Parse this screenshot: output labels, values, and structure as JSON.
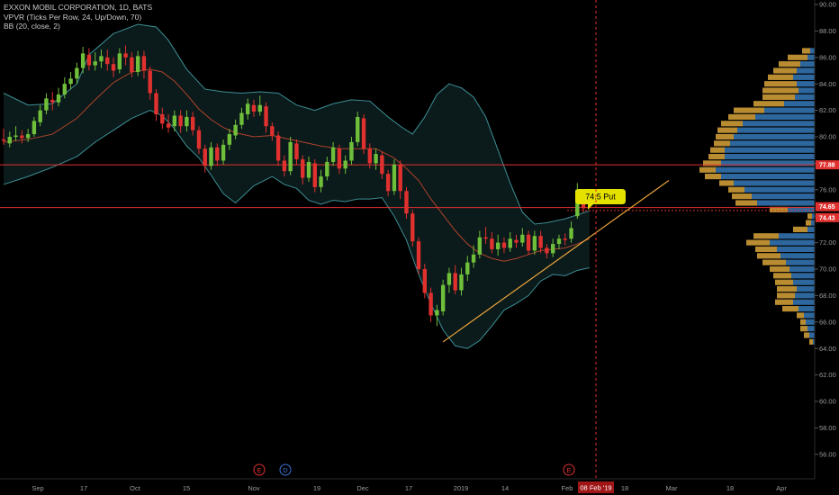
{
  "legend": {
    "symbol": "EXXON MOBIL CORPORATION, 1D, BATS",
    "vpvr": "VPVR (Ticks Per Row, 24, Up/Down, 70)",
    "bb": "BB (20, close, 2)"
  },
  "colors": {
    "background": "#000000",
    "candle_up": "#6fbf3b",
    "candle_down": "#e0312f",
    "bb_band": "#3d8f95",
    "bb_basis": "#b0442c",
    "bb_fill": "#0b1a1a",
    "vpvr_up": "#3579b8",
    "vpvr_down": "#d9a43a",
    "hline": "#e0312f",
    "trendline": "#e8a33a",
    "callout": "#e4e100"
  },
  "callout": {
    "text": "74.5 Put"
  },
  "crosshair": {
    "date_label": "08 Feb '19"
  },
  "events": [
    {
      "label": "E",
      "color": "#e0312f"
    },
    {
      "label": "D",
      "color": "#3b73d6"
    },
    {
      "label": "E",
      "color": "#e0312f"
    }
  ],
  "chart_data": {
    "type": "candlestick",
    "title": "EXXON MOBIL CORPORATION, 1D, BATS",
    "ylim": [
      55,
      90
    ],
    "y_ticks": [
      "56.00",
      "58.00",
      "60.00",
      "62.00",
      "64.00",
      "66.00",
      "68.00",
      "70.00",
      "72.00",
      "74.00",
      "76.00",
      "78.00",
      "80.00",
      "82.00",
      "84.00",
      "86.00",
      "88.00",
      "90.00"
    ],
    "x_labels": [
      "Sep",
      "17",
      "Oct",
      "15",
      "Nov",
      "19",
      "Dec",
      "17",
      "2019",
      "14",
      "Feb",
      "18",
      "Mar",
      "18",
      "Apr"
    ],
    "price_tags": [
      {
        "value": "77.88",
        "color": "#e0312f"
      },
      {
        "value": "74.65",
        "color": "#e0312f"
      },
      {
        "value": "74.43",
        "color": "#e0312f"
      }
    ],
    "hlines": [
      77.88,
      74.65
    ],
    "candles": [
      [
        79.8,
        79.7,
        80.6,
        79.4
      ],
      [
        79.5,
        80.0,
        80.4,
        79.2
      ],
      [
        80.0,
        80.1,
        80.8,
        79.7
      ],
      [
        80.1,
        79.9,
        80.5,
        79.5
      ],
      [
        79.9,
        80.2,
        80.6,
        79.6
      ],
      [
        80.2,
        81.2,
        81.5,
        80.0
      ],
      [
        81.1,
        82.0,
        82.4,
        80.8
      ],
      [
        82.0,
        82.9,
        83.3,
        81.7
      ],
      [
        82.8,
        82.6,
        83.4,
        82.0
      ],
      [
        82.6,
        83.2,
        83.7,
        82.3
      ],
      [
        83.2,
        84.0,
        84.5,
        82.9
      ],
      [
        84.0,
        84.4,
        84.9,
        83.6
      ],
      [
        84.4,
        85.2,
        85.6,
        84.0
      ],
      [
        85.2,
        86.3,
        86.8,
        84.8
      ],
      [
        86.2,
        85.4,
        86.7,
        85.0
      ],
      [
        85.4,
        85.7,
        86.4,
        85.0
      ],
      [
        85.7,
        86.1,
        86.6,
        85.2
      ],
      [
        86.0,
        85.5,
        86.6,
        85.0
      ],
      [
        85.5,
        85.0,
        86.0,
        84.5
      ],
      [
        85.1,
        86.3,
        86.7,
        84.8
      ],
      [
        86.3,
        86.0,
        86.9,
        85.4
      ],
      [
        86.0,
        84.9,
        86.4,
        84.5
      ],
      [
        84.9,
        86.1,
        86.5,
        84.6
      ],
      [
        86.1,
        85.0,
        86.5,
        84.4
      ],
      [
        85.0,
        83.3,
        85.3,
        82.8
      ],
      [
        83.3,
        81.7,
        83.6,
        81.2
      ],
      [
        81.7,
        81.0,
        82.2,
        80.6
      ],
      [
        81.0,
        80.7,
        81.7,
        80.3
      ],
      [
        80.8,
        81.6,
        82.0,
        80.4
      ],
      [
        81.6,
        80.8,
        82.0,
        80.3
      ],
      [
        80.8,
        81.5,
        82.0,
        80.4
      ],
      [
        81.5,
        80.5,
        81.9,
        80.1
      ],
      [
        80.5,
        79.1,
        80.8,
        78.7
      ],
      [
        79.1,
        77.8,
        79.4,
        77.3
      ],
      [
        77.8,
        79.2,
        79.6,
        77.5
      ],
      [
        79.2,
        78.2,
        79.5,
        77.8
      ],
      [
        78.2,
        79.4,
        79.8,
        77.9
      ],
      [
        79.4,
        80.2,
        80.6,
        79.0
      ],
      [
        80.1,
        80.9,
        81.3,
        79.8
      ],
      [
        80.9,
        81.8,
        82.2,
        80.6
      ],
      [
        81.7,
        82.5,
        82.9,
        81.3
      ],
      [
        82.4,
        81.9,
        82.8,
        81.5
      ],
      [
        81.9,
        82.4,
        83.1,
        81.6
      ],
      [
        82.3,
        80.8,
        82.6,
        80.3
      ],
      [
        80.8,
        80.1,
        81.1,
        79.7
      ],
      [
        80.1,
        78.2,
        80.4,
        77.8
      ],
      [
        78.2,
        77.4,
        78.6,
        77.0
      ],
      [
        77.4,
        79.6,
        80.0,
        77.1
      ],
      [
        79.5,
        78.3,
        79.8,
        77.9
      ],
      [
        78.3,
        76.9,
        78.6,
        76.4
      ],
      [
        76.9,
        78.1,
        78.5,
        76.6
      ],
      [
        78.0,
        76.2,
        78.3,
        75.8
      ],
      [
        76.2,
        77.0,
        77.5,
        75.8
      ],
      [
        77.0,
        78.1,
        78.5,
        76.7
      ],
      [
        78.1,
        79.2,
        79.6,
        77.8
      ],
      [
        79.1,
        77.6,
        79.4,
        77.2
      ],
      [
        77.6,
        78.2,
        78.6,
        77.2
      ],
      [
        78.2,
        79.6,
        80.0,
        77.9
      ],
      [
        79.6,
        81.5,
        81.9,
        79.3
      ],
      [
        81.4,
        79.1,
        81.7,
        78.7
      ],
      [
        79.1,
        78.0,
        79.5,
        77.6
      ],
      [
        78.0,
        78.7,
        79.1,
        77.5
      ],
      [
        78.6,
        77.2,
        78.9,
        76.8
      ],
      [
        77.2,
        75.9,
        77.5,
        75.5
      ],
      [
        75.9,
        77.9,
        78.3,
        75.6
      ],
      [
        77.9,
        75.9,
        78.2,
        75.3
      ],
      [
        75.9,
        74.2,
        76.2,
        73.8
      ],
      [
        74.2,
        72.1,
        74.5,
        71.7
      ],
      [
        72.1,
        70.0,
        72.4,
        69.6
      ],
      [
        70.0,
        68.2,
        70.4,
        67.8
      ],
      [
        68.2,
        66.5,
        68.6,
        66.0
      ],
      [
        66.5,
        66.9,
        67.3,
        65.7
      ],
      [
        66.8,
        68.8,
        69.2,
        66.5
      ],
      [
        68.8,
        69.7,
        70.1,
        68.2
      ],
      [
        69.7,
        68.4,
        70.3,
        68.1
      ],
      [
        68.4,
        69.6,
        70.1,
        68.0
      ],
      [
        69.6,
        70.5,
        71.0,
        69.1
      ],
      [
        70.5,
        71.1,
        71.8,
        70.1
      ],
      [
        71.1,
        72.4,
        72.9,
        70.8
      ],
      [
        72.4,
        72.3,
        73.2,
        71.9
      ],
      [
        72.3,
        71.5,
        72.8,
        71.2
      ],
      [
        71.5,
        72.0,
        72.6,
        71.0
      ],
      [
        72.0,
        71.6,
        72.4,
        71.2
      ],
      [
        71.6,
        72.3,
        72.8,
        71.3
      ],
      [
        72.2,
        72.0,
        72.6,
        71.6
      ],
      [
        72.0,
        72.6,
        73.1,
        71.7
      ],
      [
        72.6,
        71.4,
        72.9,
        71.1
      ],
      [
        71.4,
        72.5,
        72.9,
        71.1
      ],
      [
        72.5,
        71.6,
        72.9,
        71.2
      ],
      [
        71.6,
        71.2,
        71.9,
        70.8
      ],
      [
        71.2,
        71.9,
        72.3,
        70.9
      ],
      [
        71.9,
        72.3,
        72.6,
        71.5
      ],
      [
        72.3,
        72.2,
        72.7,
        71.8
      ],
      [
        72.3,
        73.1,
        73.6,
        72.0
      ],
      [
        74.0,
        76.0,
        76.5,
        73.8
      ],
      [
        75.7,
        74.6,
        76.0,
        74.3
      ]
    ],
    "bb_upper": [
      [
        0,
        83.3
      ],
      [
        4,
        82.4
      ],
      [
        8,
        82.5
      ],
      [
        12,
        84.0
      ],
      [
        14,
        86.2
      ],
      [
        18,
        87.8
      ],
      [
        22,
        88.5
      ],
      [
        25,
        88.3
      ],
      [
        27,
        87.3
      ],
      [
        30,
        85.1
      ],
      [
        33,
        83.6
      ],
      [
        36,
        83.4
      ],
      [
        39,
        83.3
      ],
      [
        42,
        83.4
      ],
      [
        45,
        83.3
      ],
      [
        48,
        82.4
      ],
      [
        51,
        82.0
      ],
      [
        54,
        82.5
      ],
      [
        57,
        82.8
      ],
      [
        60,
        82.7
      ],
      [
        63,
        81.5
      ],
      [
        65,
        80.8
      ],
      [
        67,
        80.2
      ],
      [
        69,
        81.5
      ],
      [
        71,
        83.2
      ],
      [
        73,
        84.0
      ],
      [
        75,
        83.7
      ],
      [
        77,
        83.0
      ],
      [
        79,
        81.5
      ],
      [
        81,
        79.0
      ],
      [
        83,
        76.5
      ],
      [
        85,
        74.3
      ],
      [
        87,
        73.4
      ],
      [
        89,
        73.5
      ],
      [
        92,
        73.8
      ],
      [
        96,
        74.4
      ]
    ],
    "bb_basis": [
      [
        0,
        79.6
      ],
      [
        4,
        79.8
      ],
      [
        8,
        80.2
      ],
      [
        12,
        81.4
      ],
      [
        15,
        82.8
      ],
      [
        18,
        84.1
      ],
      [
        21,
        84.9
      ],
      [
        24,
        85.1
      ],
      [
        26,
        84.9
      ],
      [
        28,
        84.2
      ],
      [
        30,
        83.2
      ],
      [
        32,
        82.1
      ],
      [
        34,
        81.3
      ],
      [
        36,
        80.7
      ],
      [
        38,
        80.3
      ],
      [
        41,
        80.0
      ],
      [
        44,
        80.1
      ],
      [
        46,
        79.9
      ],
      [
        49,
        79.6
      ],
      [
        52,
        79.3
      ],
      [
        55,
        79.1
      ],
      [
        58,
        79.1
      ],
      [
        61,
        79.1
      ],
      [
        64,
        78.4
      ],
      [
        66,
        77.6
      ],
      [
        68,
        76.7
      ],
      [
        70,
        75.3
      ],
      [
        72,
        74.1
      ],
      [
        74,
        72.9
      ],
      [
        76,
        71.9
      ],
      [
        78,
        71.2
      ],
      [
        80,
        70.8
      ],
      [
        82,
        70.6
      ],
      [
        84,
        70.8
      ],
      [
        86,
        71.1
      ],
      [
        88,
        71.4
      ],
      [
        90,
        71.5
      ],
      [
        92,
        71.6
      ],
      [
        94,
        71.9
      ],
      [
        96,
        72.3
      ]
    ],
    "bb_lower": [
      [
        0,
        76.4
      ],
      [
        4,
        77.0
      ],
      [
        8,
        77.7
      ],
      [
        12,
        78.5
      ],
      [
        15,
        79.6
      ],
      [
        18,
        80.5
      ],
      [
        21,
        81.4
      ],
      [
        24,
        82.0
      ],
      [
        26,
        81.6
      ],
      [
        28,
        80.6
      ],
      [
        30,
        79.3
      ],
      [
        32,
        78.4
      ],
      [
        34,
        77.1
      ],
      [
        36,
        75.7
      ],
      [
        38,
        75.0
      ],
      [
        41,
        76.3
      ],
      [
        44,
        77.0
      ],
      [
        46,
        76.4
      ],
      [
        48,
        76.1
      ],
      [
        50,
        75.2
      ],
      [
        52,
        74.9
      ],
      [
        54,
        75.2
      ],
      [
        56,
        75.1
      ],
      [
        58,
        75.3
      ],
      [
        60,
        75.3
      ],
      [
        62,
        75.4
      ],
      [
        64,
        74.0
      ],
      [
        66,
        72.2
      ],
      [
        68,
        69.6
      ],
      [
        70,
        67.4
      ],
      [
        72,
        65.4
      ],
      [
        74,
        64.2
      ],
      [
        76,
        64.0
      ],
      [
        78,
        64.6
      ],
      [
        80,
        65.7
      ],
      [
        82,
        66.9
      ],
      [
        84,
        67.4
      ],
      [
        86,
        68.0
      ],
      [
        88,
        69.1
      ],
      [
        90,
        69.6
      ],
      [
        92,
        69.5
      ],
      [
        94,
        69.9
      ],
      [
        96,
        70.1
      ]
    ],
    "trendline": [
      [
        72,
        64.5
      ],
      [
        109,
        76.7
      ]
    ],
    "vpvr": {
      "rows": [
        [
          86.5,
          14,
          5
        ],
        [
          86.0,
          30,
          8
        ],
        [
          85.5,
          40,
          16
        ],
        [
          85.0,
          46,
          20
        ],
        [
          84.5,
          52,
          24
        ],
        [
          84.0,
          56,
          20
        ],
        [
          83.5,
          58,
          18
        ],
        [
          83.0,
          58,
          22
        ],
        [
          82.5,
          68,
          34
        ],
        [
          82.0,
          90,
          56
        ],
        [
          81.5,
          96,
          66
        ],
        [
          81.0,
          104,
          80
        ],
        [
          80.5,
          108,
          86
        ],
        [
          80.0,
          110,
          90
        ],
        [
          79.5,
          112,
          94
        ],
        [
          79.0,
          116,
          100
        ],
        [
          78.5,
          118,
          100
        ],
        [
          78.0,
          124,
          104
        ],
        [
          77.5,
          128,
          110
        ],
        [
          77.0,
          122,
          104
        ],
        [
          76.5,
          106,
          90
        ],
        [
          76.0,
          96,
          78
        ],
        [
          75.5,
          92,
          70
        ],
        [
          75.0,
          88,
          64
        ],
        [
          74.5,
          50,
          30
        ],
        [
          74.0,
          8,
          3
        ],
        [
          73.5,
          10,
          4
        ],
        [
          73.0,
          24,
          8
        ],
        [
          72.5,
          68,
          40
        ],
        [
          72.0,
          76,
          50
        ],
        [
          71.5,
          66,
          42
        ],
        [
          71.0,
          64,
          38
        ],
        [
          70.5,
          58,
          32
        ],
        [
          70.0,
          50,
          28
        ],
        [
          69.5,
          46,
          26
        ],
        [
          69.0,
          44,
          24
        ],
        [
          68.5,
          42,
          20
        ],
        [
          68.0,
          42,
          22
        ],
        [
          67.5,
          44,
          24
        ],
        [
          67.0,
          36,
          18
        ],
        [
          66.5,
          20,
          12
        ],
        [
          66.0,
          16,
          10
        ],
        [
          65.5,
          16,
          8
        ],
        [
          65.0,
          12,
          6
        ],
        [
          64.5,
          6,
          2
        ]
      ]
    }
  }
}
